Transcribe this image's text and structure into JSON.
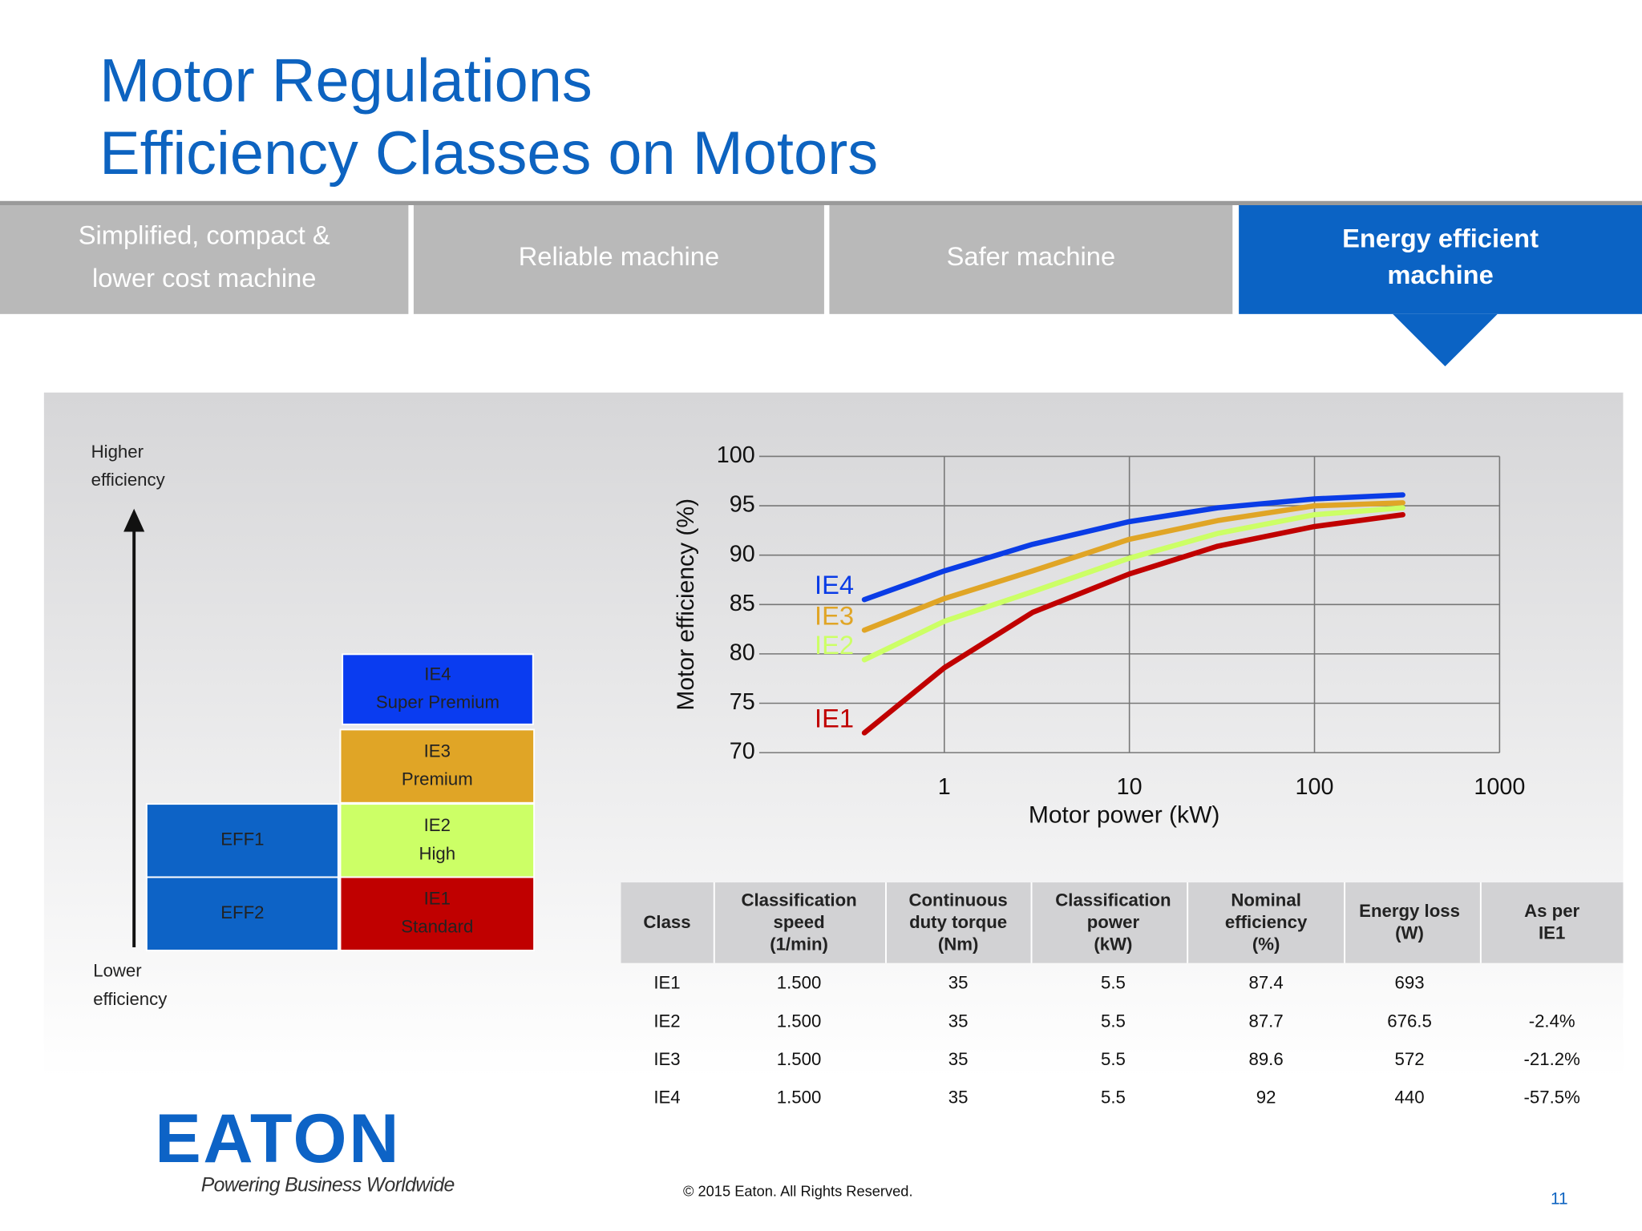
{
  "header": {
    "title": [
      "Motor Regulations",
      "Efficiency Classes on Motors"
    ]
  },
  "tabs": [
    {
      "lines": [
        "Simplified, compact &",
        "lower cost machine"
      ],
      "active": false
    },
    {
      "lines": [
        "Reliable machine"
      ],
      "active": false
    },
    {
      "lines": [
        "Safer machine"
      ],
      "active": false
    },
    {
      "lines": [
        "Energy efficient",
        "machine"
      ],
      "active": true
    }
  ],
  "ladder": {
    "top": [
      "Higher",
      "efficiency"
    ],
    "bottom": [
      "Lower",
      "efficiency"
    ],
    "blocks": [
      {
        "lines": [
          "EFF1"
        ],
        "color": "#0d63c6"
      },
      {
        "lines": [
          "EFF2"
        ],
        "color": "#0d63c6"
      },
      {
        "lines": [
          "IE4",
          "Super Premium"
        ],
        "color": "#0a3cf0"
      },
      {
        "lines": [
          "IE3",
          "Premium"
        ],
        "color": "#e0a526"
      },
      {
        "lines": [
          "IE2",
          "High"
        ],
        "color": "#ccff66"
      },
      {
        "lines": [
          "IE1",
          "Standard"
        ],
        "color": "#c00000"
      }
    ]
  },
  "chart_data": {
    "type": "line",
    "x_label": "Motor power (kW)",
    "y_label": "Motor efficiency (%)",
    "x": [
      0.37,
      1,
      3,
      10,
      30,
      100,
      300
    ],
    "series": [
      {
        "name": "IE4",
        "color": "#0a3ce6",
        "values": [
          85.5,
          88.4,
          91.1,
          93.4,
          94.8,
          95.7,
          96.1
        ]
      },
      {
        "name": "IE3",
        "color": "#e0a526",
        "values": [
          82.4,
          85.6,
          88.4,
          91.6,
          93.5,
          95,
          95.3
        ]
      },
      {
        "name": "IE2",
        "color": "#ccff66",
        "values": [
          79.4,
          83.3,
          86.3,
          89.7,
          92.2,
          94.1,
          94.8
        ]
      },
      {
        "name": "IE1",
        "color": "#c00000",
        "values": [
          72,
          78.6,
          84.2,
          88.1,
          90.9,
          92.9,
          94.1
        ]
      }
    ],
    "xlim": [
      0.1,
      1000
    ],
    "xticks": [
      1,
      10,
      100,
      1000
    ],
    "xscale": "log",
    "ylim": [
      70,
      100
    ],
    "yticks": [
      70,
      75,
      80,
      85,
      90,
      95,
      100
    ],
    "grid": true
  },
  "table": {
    "columns": [
      [
        "Class"
      ],
      [
        "Classification",
        "speed",
        "(1/min)"
      ],
      [
        "Continuous",
        "duty torque",
        "(Nm)"
      ],
      [
        "Classification",
        "power",
        "(kW)"
      ],
      [
        "Nominal",
        "efficiency",
        "(%)"
      ],
      [
        "Energy loss",
        "(W)"
      ],
      [
        "As per",
        "IE1"
      ]
    ],
    "rows": [
      [
        "IE1",
        "1.500",
        "35",
        "5.5",
        "87.4",
        "693",
        null
      ],
      [
        "IE2",
        "1.500",
        "35",
        "5.5",
        "87.7",
        "676.5",
        "-2.4%"
      ],
      [
        "IE3",
        "1.500",
        "35",
        "5.5",
        "89.6",
        "572",
        "-21.2%"
      ],
      [
        "IE4",
        "1.500",
        "35",
        "5.5",
        "92",
        "440",
        "-57.5%"
      ]
    ]
  },
  "logo": {
    "name": "EATON",
    "tagline": "Powering Business Worldwide"
  },
  "footer": {
    "copyright": "© 2015 Eaton. All Rights Reserved.",
    "page": "11"
  }
}
